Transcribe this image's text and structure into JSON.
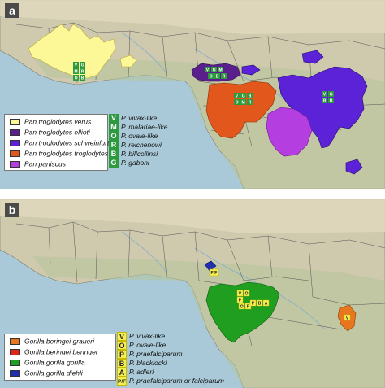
{
  "panel_a": {
    "tag": "a",
    "host_legend": [
      {
        "label": "Pan troglodytes verus",
        "color": "#fcf797"
      },
      {
        "label": "Pan troglodytes ellioti",
        "color": "#5a1f8c"
      },
      {
        "label": "Pan troglodytes schweinfurthii",
        "color": "#5b22d8"
      },
      {
        "label": "Pan troglodytes troglodytes",
        "color": "#e2571c"
      },
      {
        "label": "Pan paniscus",
        "color": "#b43ee0"
      }
    ],
    "parasite_legend": [
      {
        "code": "V",
        "label": "P. vivax-like"
      },
      {
        "code": "M",
        "label": "P. malariae-like"
      },
      {
        "code": "O",
        "label": "P. ovale-like"
      },
      {
        "code": "R",
        "label": "P. reichenowi"
      },
      {
        "code": "B",
        "label": "P. billcollinsi"
      },
      {
        "code": "G",
        "label": "P. gaboni"
      }
    ],
    "markers": [
      "V",
      "G",
      "M",
      "R",
      "O",
      "B",
      "V",
      "G",
      "M",
      "O",
      "B",
      "R",
      "V",
      "G",
      "O",
      "M",
      "R",
      "B",
      "V",
      "G",
      "R",
      "B"
    ]
  },
  "panel_b": {
    "tag": "b",
    "host_legend": [
      {
        "label": "Gorilla beringei graueri",
        "color": "#e8761f"
      },
      {
        "label": "Gorilla beringei beringei",
        "color": "#e02418"
      },
      {
        "label": "Gorilla gorilla gorilla",
        "color": "#1f9e1f"
      },
      {
        "label": "Gorilla gorilla diehli",
        "color": "#1f2fb0"
      }
    ],
    "parasite_legend": [
      {
        "code": "V",
        "label": "P. vivax-like"
      },
      {
        "code": "O",
        "label": "P. ovale-like"
      },
      {
        "code": "P",
        "label": "P. praefalciparum"
      },
      {
        "code": "B",
        "label": "P. blacklocki"
      },
      {
        "code": "A",
        "label": "P. adleri"
      },
      {
        "code": "P/F",
        "label": "P. praefalciparum or falciparum"
      }
    ],
    "markers": [
      "P/F",
      "V",
      "O",
      "P",
      "O",
      "P",
      "P",
      "B",
      "A",
      "V"
    ]
  }
}
